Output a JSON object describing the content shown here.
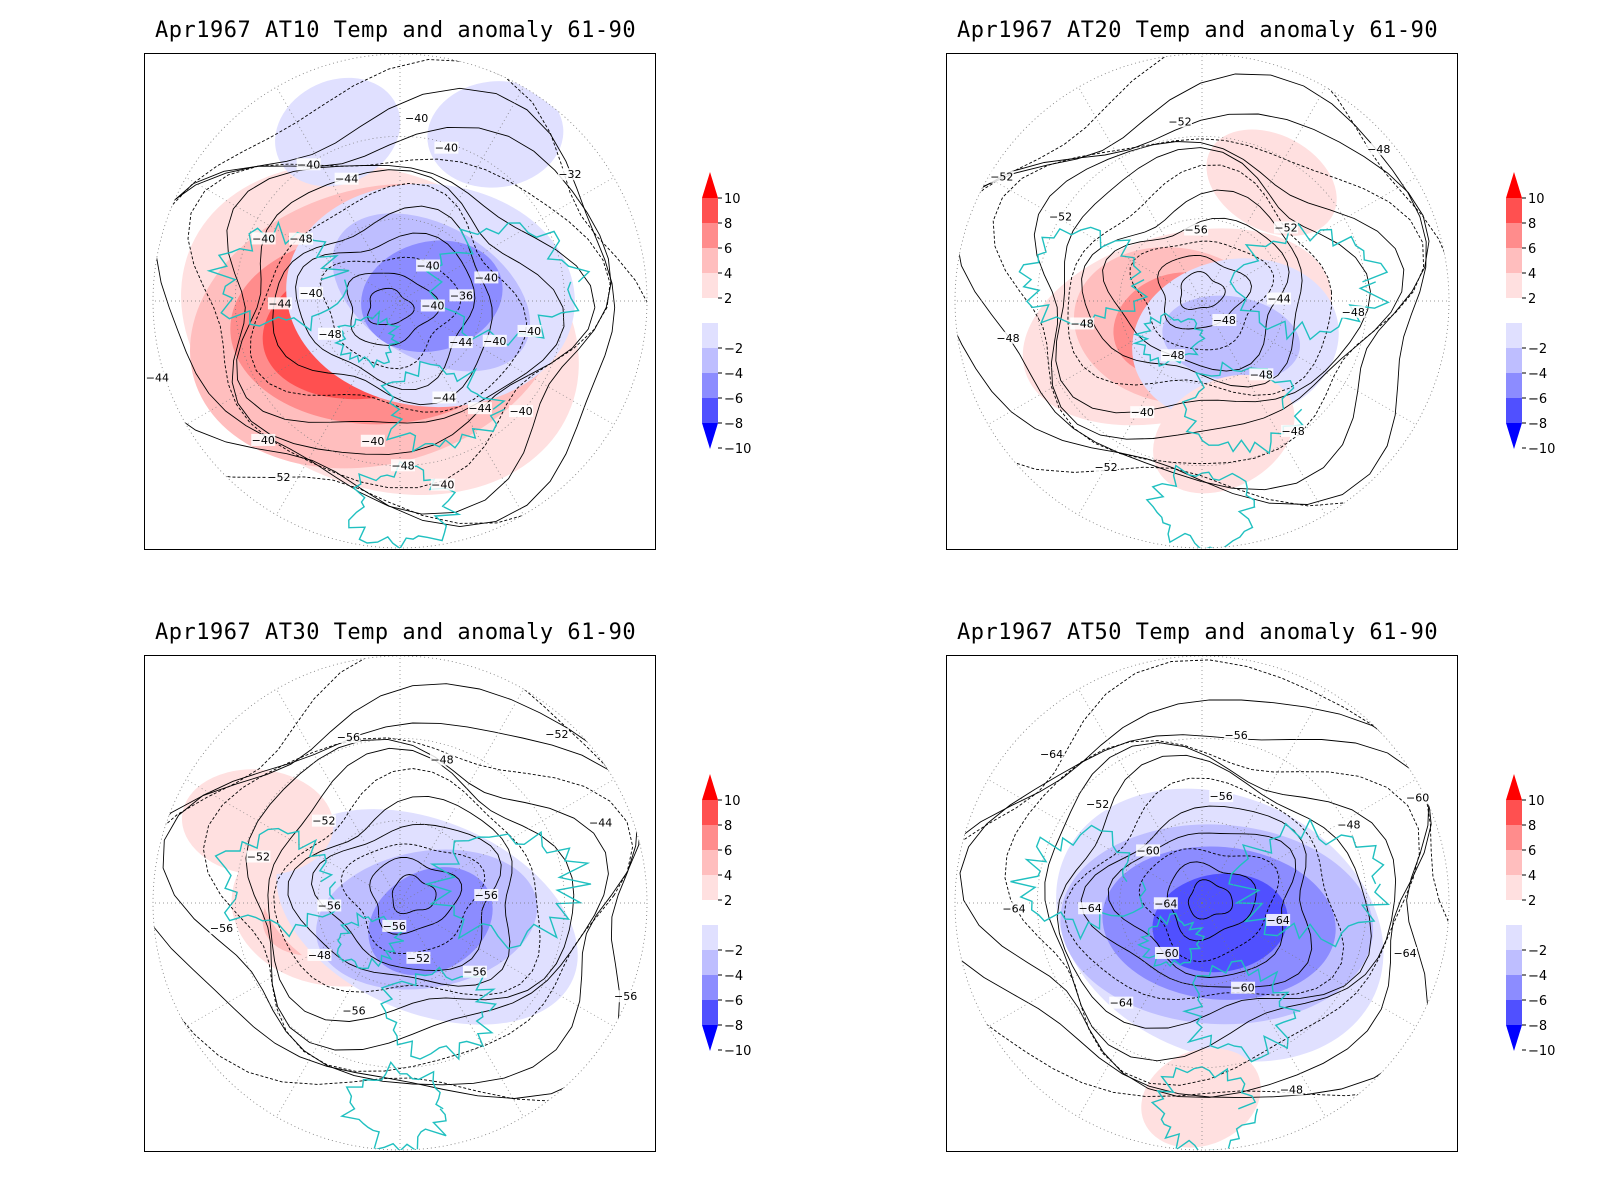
{
  "panels": [
    {
      "title": "Apr1967 AT10 Temp and anomaly 61-90",
      "contour_labels": [
        "-40",
        "-44",
        "-44",
        "-40",
        "-40",
        "-44",
        "-40",
        "-48",
        "-44",
        "-40",
        "-32",
        "-36",
        "-40",
        "-44",
        "-48",
        "-52",
        "-48",
        "-44",
        "-40",
        "-40",
        "-40",
        "-40",
        "-40",
        "-40",
        "-40",
        "-40"
      ],
      "anomalies": [
        {
          "type": "warm",
          "level": 10,
          "lon": -40,
          "lat": 78
        },
        {
          "type": "cold",
          "level": -6,
          "lon": 100,
          "lat": 78
        },
        {
          "type": "cold",
          "level": -2,
          "lon": 150,
          "lat": 20
        },
        {
          "type": "cold",
          "level": -2,
          "lon": -160,
          "lat": 25
        }
      ]
    },
    {
      "title": "Apr1967 AT20 Temp and anomaly 61-90",
      "contour_labels": [
        "-48",
        "-48",
        "-48",
        "-52",
        "-52",
        "-48",
        "-44",
        "-48",
        "-40",
        "-48",
        "-52",
        "-56",
        "-52",
        "-48",
        "-48",
        "-52"
      ],
      "anomalies": [
        {
          "type": "warm",
          "level": 6,
          "lon": -45,
          "lat": 78
        },
        {
          "type": "cold",
          "level": -4,
          "lon": 40,
          "lat": 72
        },
        {
          "type": "warm",
          "level": 2,
          "lon": 150,
          "lat": 40
        },
        {
          "type": "warm",
          "level": 2,
          "lon": 10,
          "lat": 40
        }
      ]
    },
    {
      "title": "Apr1967 AT30 Temp and anomaly 61-90",
      "contour_labels": [
        "-56",
        "-56",
        "-52",
        "-48",
        "-44",
        "-56",
        "-52",
        "-48",
        "-52",
        "-56",
        "-52",
        "-56",
        "-56",
        "-56",
        "-56"
      ],
      "anomalies": [
        {
          "type": "warm",
          "level": 4,
          "lon": -90,
          "lat": 68
        },
        {
          "type": "warm",
          "level": 4,
          "lon": -50,
          "lat": 80
        },
        {
          "type": "cold",
          "level": -6,
          "lon": 60,
          "lat": 78
        },
        {
          "type": "warm",
          "level": 2,
          "lon": -120,
          "lat": 30
        }
      ]
    },
    {
      "title": "Apr1967 AT50 Temp and anomaly 61-90",
      "contour_labels": [
        "-64",
        "-60",
        "-56",
        "-48",
        "-64",
        "-48",
        "-60",
        "-64",
        "-52",
        "-56",
        "-60",
        "-64",
        "-60",
        "-64",
        "-64",
        "-64"
      ],
      "anomalies": [
        {
          "type": "cold",
          "level": -8,
          "lon": 40,
          "lat": 80
        },
        {
          "type": "warm",
          "level": 2,
          "lon": 0,
          "lat": 20
        }
      ]
    }
  ],
  "colorbar": {
    "labels": [
      "10",
      "8",
      "6",
      "4",
      "2",
      "-2",
      "-4",
      "-6",
      "-8",
      "-10"
    ],
    "colors": [
      "#ff0000",
      "#ff5050",
      "#ff8c8c",
      "#ffbebe",
      "#ffe0e0",
      "#ffffff",
      "#e0e0ff",
      "#bebeff",
      "#8c8cff",
      "#5050ff",
      "#0000ff"
    ]
  },
  "colors": {
    "coast": "#20c0c0",
    "grid": "#777777",
    "contour": "#000000"
  }
}
